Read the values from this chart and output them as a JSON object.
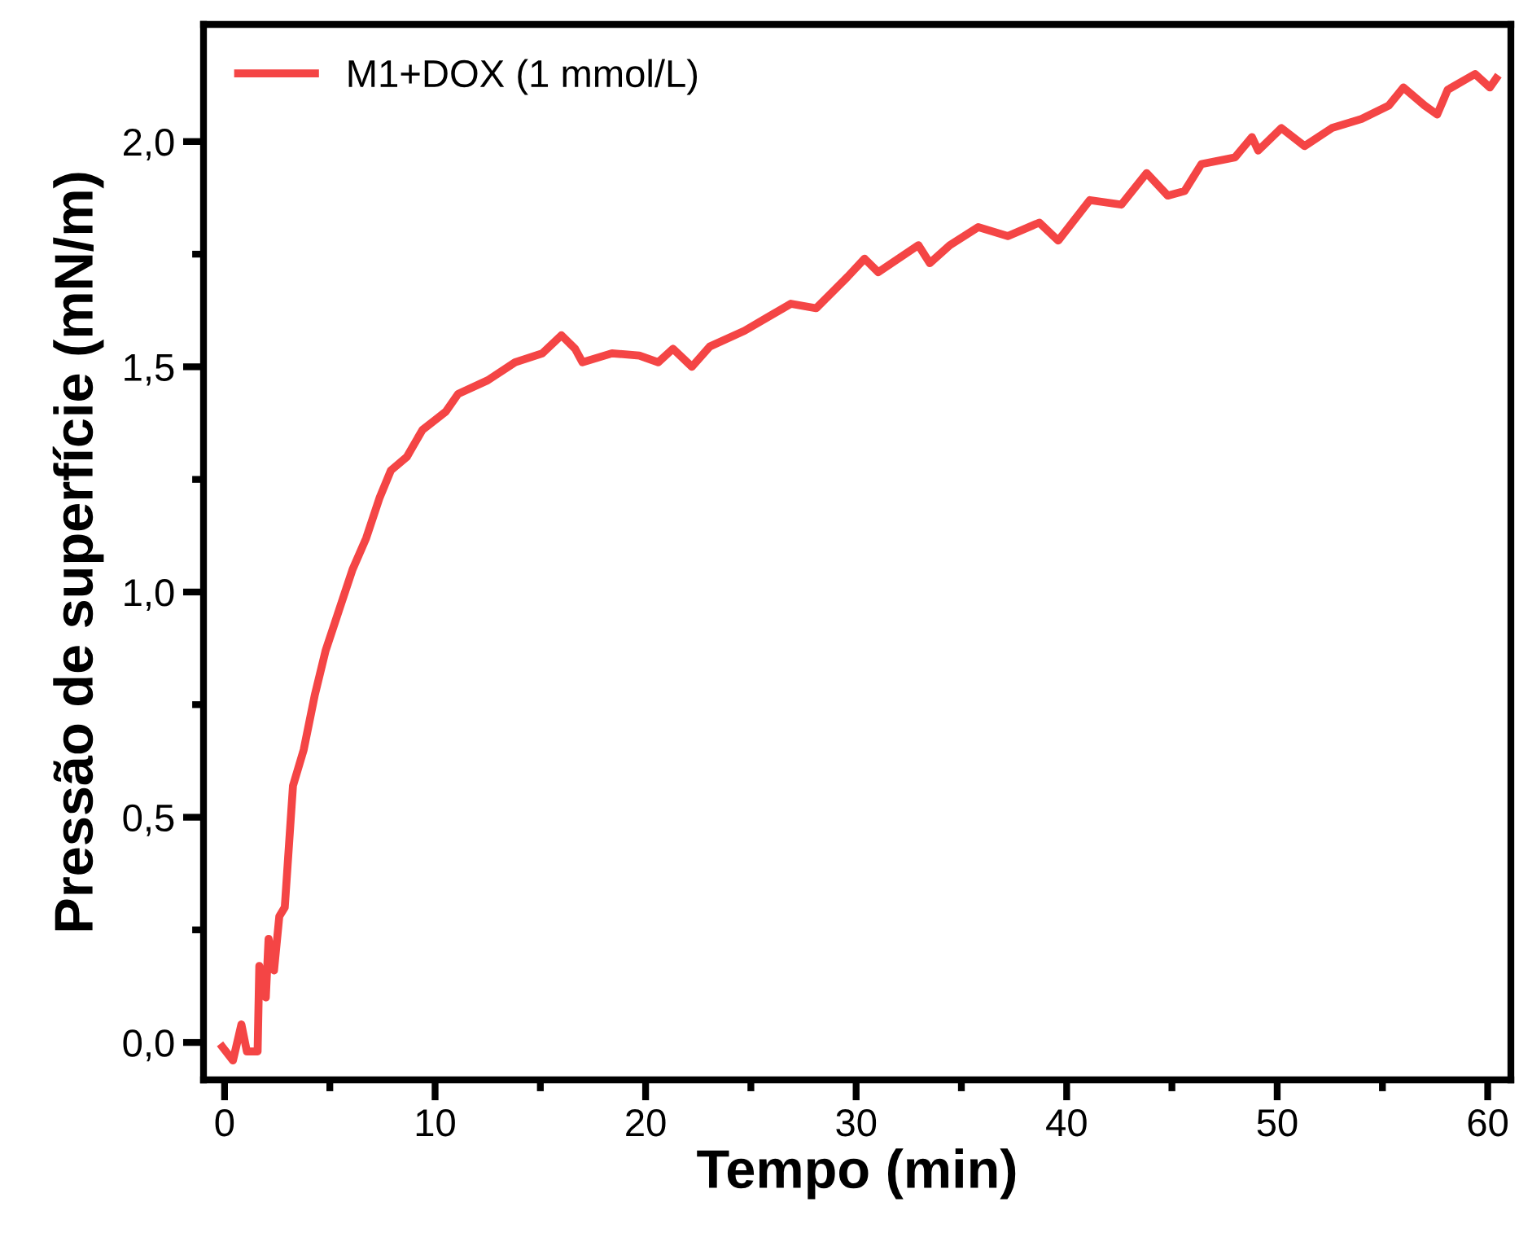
{
  "chart_data": {
    "type": "line",
    "xlabel": "Tempo (min)",
    "ylabel": "Pressão de superfície (mN/m)",
    "xlim": [
      -1.0,
      61.1
    ],
    "ylim": [
      -0.083,
      2.26
    ],
    "xticks": [
      0,
      {
        "value": 5,
        "label": null
      },
      10,
      {
        "value": 15,
        "label": null
      },
      20,
      {
        "value": 25,
        "label": null
      },
      30,
      {
        "value": 35,
        "label": null
      },
      40,
      {
        "value": 45,
        "label": null
      },
      50,
      {
        "value": 55,
        "label": null
      },
      60
    ],
    "yticks": [
      {
        "value": 0,
        "label": "0,0"
      },
      {
        "value": 0.25,
        "label": null
      },
      {
        "value": 0.5,
        "label": "0,5"
      },
      {
        "value": 0.75,
        "label": null
      },
      {
        "value": 1.0,
        "label": "1,0"
      },
      {
        "value": 1.25,
        "label": null
      },
      {
        "value": 1.5,
        "label": "1,5"
      },
      {
        "value": 1.75,
        "label": null
      },
      {
        "value": 2.0,
        "label": "2,0"
      }
    ],
    "grid": false,
    "legend": "top left",
    "marker": "none",
    "line_style": "solid",
    "series": [
      {
        "name": "M1+DOX (1 mmol/L)",
        "color": "#f44545",
        "x": [
          -0.1,
          0.4,
          0.8,
          1.06,
          1.57,
          1.65,
          1.96,
          2.09,
          2.35,
          2.6,
          2.86,
          3.25,
          3.76,
          4.28,
          4.8,
          5.44,
          6.08,
          6.73,
          7.37,
          7.9,
          8.66,
          9.4,
          10.5,
          11.1,
          12.5,
          13.8,
          15.1,
          16.0,
          16.65,
          17.0,
          18.4,
          19.7,
          20.6,
          21.3,
          22.2,
          23.05,
          24.7,
          25.8,
          26.9,
          28.1,
          29.6,
          30.4,
          31.05,
          32.96,
          33.5,
          34.45,
          35.8,
          37.2,
          38.7,
          39.6,
          41.1,
          42.6,
          43.8,
          44.8,
          45.6,
          46.4,
          48.0,
          48.8,
          49.1,
          50.2,
          51.3,
          52.6,
          54.0,
          55.3,
          56.0,
          57.0,
          57.6,
          58.1,
          59.4,
          60.1,
          60.4
        ],
        "values": [
          -0.01,
          -0.04,
          0.04,
          -0.02,
          -0.02,
          0.17,
          0.1,
          0.23,
          0.16,
          0.28,
          0.3,
          0.57,
          0.65,
          0.77,
          0.87,
          0.96,
          1.05,
          1.12,
          1.21,
          1.27,
          1.3,
          1.36,
          1.4,
          1.44,
          1.47,
          1.51,
          1.53,
          1.57,
          1.54,
          1.51,
          1.53,
          1.525,
          1.51,
          1.54,
          1.5,
          1.545,
          1.58,
          1.61,
          1.64,
          1.63,
          1.7,
          1.74,
          1.71,
          1.77,
          1.73,
          1.77,
          1.81,
          1.79,
          1.82,
          1.78,
          1.87,
          1.86,
          1.93,
          1.88,
          1.89,
          1.95,
          1.965,
          2.01,
          1.98,
          2.03,
          1.99,
          2.03,
          2.05,
          2.08,
          2.12,
          2.08,
          2.06,
          2.115,
          2.15,
          2.12,
          2.14
        ]
      }
    ]
  }
}
